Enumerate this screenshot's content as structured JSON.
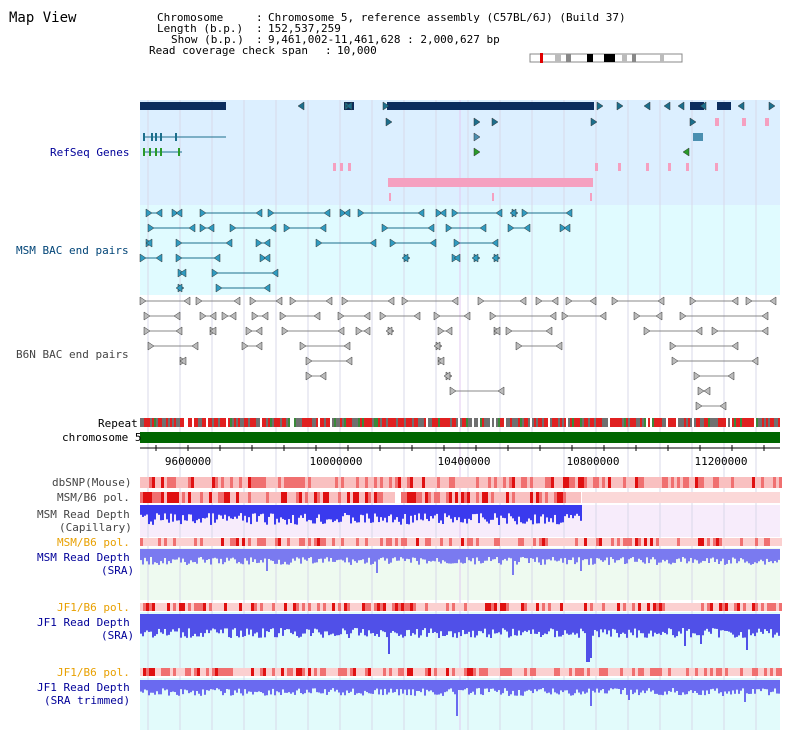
{
  "app": {
    "title": "Map View"
  },
  "header": {
    "chromosome_key": "Chromosome",
    "chromosome_val": "Chromosome 5, reference assembly (C57BL/6J) (Build 37)",
    "length_key": "Length (b.p.)",
    "length_val": "152,537,259",
    "show_key": "Show (b.p.)",
    "show_val": "9,461,002-11,461,628 : 2,000,627 bp",
    "coverage_key": "Read coverage check span",
    "coverage_val": "10,000"
  },
  "tracks": {
    "refseq": "RefSeq Genes",
    "msm_bac": "MSM BAC end pairs",
    "b6n_bac": "B6N BAC end pairs",
    "repeat": "Repeat",
    "chromosome": "chromosome 5",
    "dbsnp": "dbSNP(Mouse)",
    "msm_b6_pol": "MSM/B6 pol.",
    "msm_depth_cap_1": "MSM Read Depth",
    "msm_depth_cap_2": "(Capillary)",
    "msm_b6_pol_2": "MSM/B6 pol.",
    "msm_depth_sra_1": "MSM Read Depth",
    "msm_depth_sra_2": "(SRA)",
    "jf1_b6_pol": "JF1/B6 pol.",
    "jf1_depth_sra_1": "JF1 Read Depth",
    "jf1_depth_sra_2": "(SRA)",
    "jf1_b6_pol_2": "JF1/B6 pol.",
    "jf1_depth_trim_1": "JF1 Read Depth",
    "jf1_depth_trim_2": "(SRA trimmed)"
  },
  "axis": {
    "ticks": [
      "9600000",
      "10000000",
      "10400000",
      "10800000",
      "11200000"
    ]
  },
  "colors": {
    "dark_navy": "#0b2d5e",
    "teal": "#1d6f8c",
    "pink": "#f5a0c0",
    "gene_green": "#2a9a2a",
    "chromosome_green": "#006600",
    "sky": "#dcefff",
    "cyan_bg": "#e0fbff",
    "msm_orange": "#e8a000",
    "depth_blue": "#2a2ae0",
    "label_blue": "#000099",
    "label_teal": "#004477"
  }
}
